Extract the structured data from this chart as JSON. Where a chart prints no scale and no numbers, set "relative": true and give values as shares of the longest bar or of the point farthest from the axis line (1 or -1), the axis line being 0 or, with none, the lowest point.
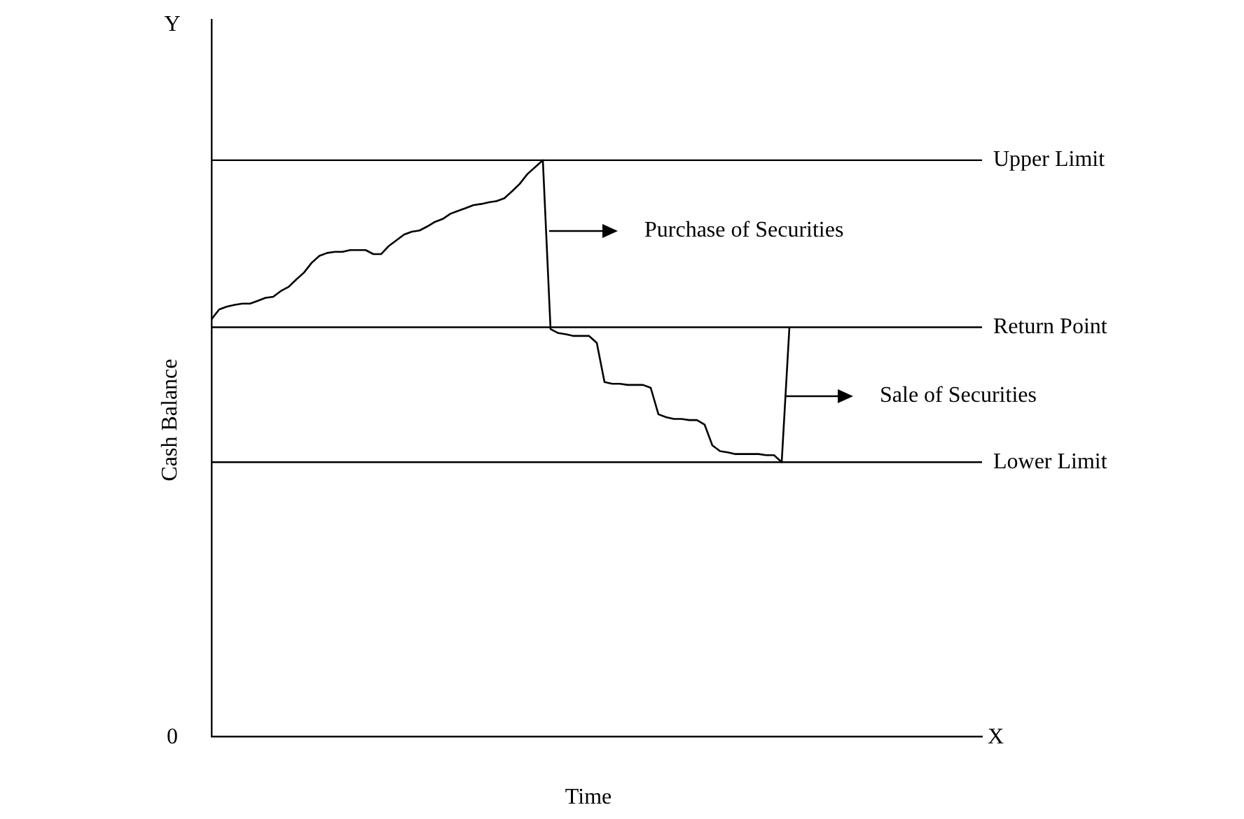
{
  "chart_data": {
    "type": "line",
    "relative": true,
    "xlabel": "Time",
    "ylabel": "Cash Balance",
    "marker": "none",
    "line_style": "solid",
    "categories": [
      null,
      null,
      null,
      null,
      null,
      null,
      null,
      null,
      null,
      null,
      null,
      null,
      null,
      null,
      null,
      null,
      null,
      null,
      null,
      null,
      null,
      null,
      null,
      null,
      null,
      null,
      null,
      null,
      null,
      null,
      null,
      null,
      null,
      null,
      null,
      null,
      null,
      null,
      null,
      null,
      null,
      null,
      null,
      null,
      null,
      null,
      null,
      null,
      null,
      null,
      null,
      null,
      null,
      null,
      null,
      null,
      null,
      null,
      null,
      null,
      null,
      null,
      null,
      null,
      null,
      null,
      null,
      null,
      null,
      null,
      null,
      null,
      null,
      null,
      null,
      null,
      null,
      null,
      null,
      null,
      null,
      null,
      null,
      null,
      null,
      null,
      null,
      null,
      null,
      null,
      null,
      null,
      null,
      null,
      null,
      null,
      null,
      null,
      null,
      null,
      null
    ],
    "series": [
      {
        "color": "#000000",
        "values": [
          0.724,
          0.741,
          0.746,
          0.749,
          0.751,
          0.751,
          0.756,
          0.761,
          0.763,
          0.773,
          0.78,
          0.793,
          0.805,
          0.822,
          0.834,
          0.839,
          0.841,
          0.841,
          0.844,
          0.844,
          0.844,
          0.837,
          0.837,
          0.851,
          0.861,
          0.871,
          0.876,
          0.878,
          0.885,
          0.893,
          0.898,
          0.907,
          0.912,
          0.917,
          0.922,
          0.924,
          0.927,
          0.929,
          0.934,
          0.946,
          0.959,
          0.976,
          0.988,
          1,
          0.707,
          0.7,
          0.698,
          0.695,
          0.695,
          0.695,
          0.683,
          0.615,
          0.612,
          0.612,
          0.61,
          0.61,
          0.61,
          0.605,
          0.559,
          0.554,
          0.551,
          0.551,
          0.549,
          0.549,
          0.541,
          0.505,
          0.495,
          0.493,
          0.49,
          0.49,
          0.49,
          0.49,
          0.488,
          0.488,
          0.476,
          0.71,
          null,
          null,
          null,
          null,
          null,
          null,
          null,
          null,
          null,
          null,
          null,
          null,
          null,
          null,
          null,
          null,
          null,
          null,
          null,
          null,
          null,
          null,
          null,
          null,
          null
        ]
      }
    ],
    "ref_lines": [
      {
        "axis": "y",
        "value": 1,
        "label": "Upper Limit",
        "color": "#000000"
      },
      {
        "axis": "y",
        "value": 0.71,
        "label": "Return Point",
        "color": "#000000"
      },
      {
        "axis": "y",
        "value": 0.476,
        "label": "Lower Limit",
        "color": "#000000"
      }
    ],
    "annotations": [
      "Purchase of Securities",
      "Sale of Securities",
      "Y",
      "0",
      "X"
    ]
  }
}
